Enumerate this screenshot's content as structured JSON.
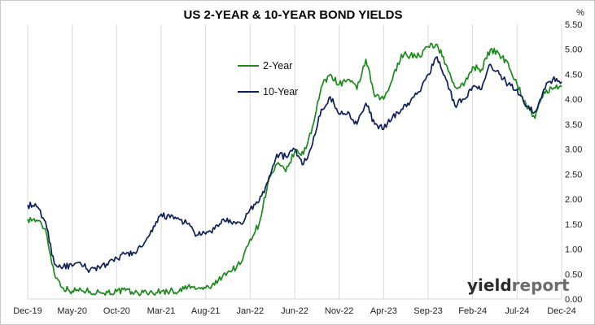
{
  "chart_data": {
    "type": "line",
    "title": "US 2-YEAR & 10-YEAR BOND YIELDS",
    "yunit": "%",
    "ylim": [
      0,
      5.5
    ],
    "yticks": [
      "0.00",
      "0.50",
      "1.00",
      "1.50",
      "2.00",
      "2.50",
      "3.00",
      "3.50",
      "4.00",
      "4.50",
      "5.00",
      "5.50"
    ],
    "xlim": [
      "2019-12",
      "2024-12"
    ],
    "xticks": [
      "Dec-19",
      "May-20",
      "Oct-20",
      "Mar-21",
      "Aug-21",
      "Jan-22",
      "Jun-22",
      "Nov-22",
      "Apr-23",
      "Sep-23",
      "Feb-24",
      "Jul-24",
      "Dec-24"
    ],
    "grid": "vertical",
    "legend_position": "upper-middle",
    "watermark": "yieldreport",
    "series": [
      {
        "name": "2-Year",
        "color": "#1a8a1a",
        "x": [
          "2019-12",
          "2020-01",
          "2020-02",
          "2020-03",
          "2020-04",
          "2020-05",
          "2020-06",
          "2020-07",
          "2020-08",
          "2020-09",
          "2020-10",
          "2020-11",
          "2020-12",
          "2021-01",
          "2021-02",
          "2021-03",
          "2021-04",
          "2021-05",
          "2021-06",
          "2021-07",
          "2021-08",
          "2021-09",
          "2021-10",
          "2021-11",
          "2021-12",
          "2022-01",
          "2022-02",
          "2022-03",
          "2022-04",
          "2022-05",
          "2022-06",
          "2022-07",
          "2022-08",
          "2022-09",
          "2022-10",
          "2022-11",
          "2022-12",
          "2023-01",
          "2023-02",
          "2023-03",
          "2023-04",
          "2023-05",
          "2023-06",
          "2023-07",
          "2023-08",
          "2023-09",
          "2023-10",
          "2023-11",
          "2023-12",
          "2024-01",
          "2024-02",
          "2024-03",
          "2024-04",
          "2024-05",
          "2024-06",
          "2024-07",
          "2024-08",
          "2024-09",
          "2024-10",
          "2024-11",
          "2024-12"
        ],
        "values": [
          1.6,
          1.58,
          1.4,
          0.5,
          0.22,
          0.16,
          0.18,
          0.15,
          0.14,
          0.13,
          0.15,
          0.17,
          0.12,
          0.13,
          0.13,
          0.15,
          0.16,
          0.15,
          0.25,
          0.2,
          0.22,
          0.28,
          0.5,
          0.58,
          0.73,
          1.2,
          1.5,
          2.33,
          2.7,
          2.55,
          2.95,
          2.9,
          3.45,
          4.25,
          4.5,
          4.3,
          4.4,
          4.2,
          4.8,
          4.05,
          4.0,
          4.4,
          4.9,
          4.88,
          4.87,
          5.05,
          5.1,
          4.7,
          4.25,
          4.27,
          4.65,
          4.6,
          5.0,
          4.9,
          4.72,
          4.3,
          3.9,
          3.62,
          4.15,
          4.2,
          4.25
        ]
      },
      {
        "name": "10-Year",
        "color": "#0d1f5c",
        "x": [
          "2019-12",
          "2020-01",
          "2020-02",
          "2020-03",
          "2020-04",
          "2020-05",
          "2020-06",
          "2020-07",
          "2020-08",
          "2020-09",
          "2020-10",
          "2020-11",
          "2020-12",
          "2021-01",
          "2021-02",
          "2021-03",
          "2021-04",
          "2021-05",
          "2021-06",
          "2021-07",
          "2021-08",
          "2021-09",
          "2021-10",
          "2021-11",
          "2021-12",
          "2022-01",
          "2022-02",
          "2022-03",
          "2022-04",
          "2022-05",
          "2022-06",
          "2022-07",
          "2022-08",
          "2022-09",
          "2022-10",
          "2022-11",
          "2022-12",
          "2023-01",
          "2023-02",
          "2023-03",
          "2023-04",
          "2023-05",
          "2023-06",
          "2023-07",
          "2023-08",
          "2023-09",
          "2023-10",
          "2023-11",
          "2023-12",
          "2024-01",
          "2024-02",
          "2024-03",
          "2024-04",
          "2024-05",
          "2024-06",
          "2024-07",
          "2024-08",
          "2024-09",
          "2024-10",
          "2024-11",
          "2024-12"
        ],
        "values": [
          1.88,
          1.85,
          1.55,
          0.7,
          0.65,
          0.66,
          0.7,
          0.58,
          0.65,
          0.68,
          0.82,
          0.9,
          0.93,
          1.08,
          1.35,
          1.7,
          1.63,
          1.6,
          1.5,
          1.28,
          1.3,
          1.4,
          1.6,
          1.5,
          1.5,
          1.8,
          1.95,
          2.35,
          2.9,
          2.85,
          3.0,
          2.7,
          3.1,
          3.8,
          4.05,
          3.7,
          3.75,
          3.5,
          3.92,
          3.5,
          3.4,
          3.65,
          3.8,
          3.95,
          4.15,
          4.5,
          4.85,
          4.4,
          3.88,
          4.0,
          4.25,
          4.2,
          4.7,
          4.5,
          4.3,
          4.2,
          3.85,
          3.75,
          4.2,
          4.4,
          4.35
        ]
      }
    ]
  }
}
